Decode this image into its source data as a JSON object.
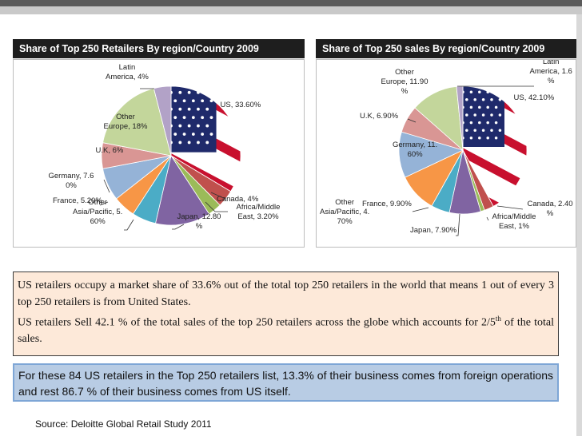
{
  "chart_data": [
    {
      "type": "pie",
      "title": "Share of Top 250 Retailers By region/Country 2009",
      "slices": [
        {
          "name": "US",
          "value": 33.6,
          "label_lines": [
            "US, 33.60%"
          ],
          "fill": "flag"
        },
        {
          "name": "Canada",
          "value": 4,
          "label_lines": [
            "Canada, 4%"
          ],
          "color": "#c0504d"
        },
        {
          "name": "Africa/Middle East",
          "value": 3.2,
          "label_lines": [
            "Africa/Middle",
            "East, 3.20%"
          ],
          "color": "#9bbb59"
        },
        {
          "name": "Japan",
          "value": 12.8,
          "label_lines": [
            "Japan, 12.80",
            "%"
          ],
          "color": "#8064a2"
        },
        {
          "name": "Other Asia/Pacific",
          "value": 5.6,
          "label_lines": [
            "Other",
            "Asia/Pacific, 5.",
            "60%"
          ],
          "color": "#4bacc6"
        },
        {
          "name": "France",
          "value": 5.2,
          "label_lines": [
            "France, 5.20%"
          ],
          "color": "#f79646"
        },
        {
          "name": "Germany",
          "value": 7.6,
          "label_lines": [
            "Germany, 7.6",
            "0%"
          ],
          "color": "#95b3d7"
        },
        {
          "name": "U.K",
          "value": 6,
          "label_lines": [
            "U.K, 6%"
          ],
          "color": "#d99694"
        },
        {
          "name": "Other Europe",
          "value": 18,
          "label_lines": [
            "Other",
            "Europe, 18%"
          ],
          "color": "#c3d69b"
        },
        {
          "name": "Latin America",
          "value": 4,
          "label_lines": [
            "Latin",
            "America, 4%"
          ],
          "color": "#b2a2c7"
        }
      ]
    },
    {
      "type": "pie",
      "title": "Share of Top 250 sales By region/Country 2009",
      "slices": [
        {
          "name": "US",
          "value": 42.1,
          "label_lines": [
            "US, 42.10%"
          ],
          "fill": "flag"
        },
        {
          "name": "Canada",
          "value": 2.4,
          "label_lines": [
            "Canada, 2.40",
            "%"
          ],
          "color": "#c0504d"
        },
        {
          "name": "Africa/Middle East",
          "value": 1,
          "label_lines": [
            "Africa/Middle",
            "East, 1%"
          ],
          "color": "#9bbb59"
        },
        {
          "name": "Japan",
          "value": 7.9,
          "label_lines": [
            "Japan, 7.90%"
          ],
          "color": "#8064a2"
        },
        {
          "name": "Other Asia/Pacific",
          "value": 4.7,
          "label_lines": [
            "Other",
            "Asia/Pacific, 4.",
            "70%"
          ],
          "color": "#4bacc6"
        },
        {
          "name": "France",
          "value": 9.9,
          "label_lines": [
            "France, 9.90%"
          ],
          "color": "#f79646"
        },
        {
          "name": "Germany",
          "value": 11.6,
          "label_lines": [
            "Germany, 11.",
            "60%"
          ],
          "color": "#95b3d7"
        },
        {
          "name": "U.K",
          "value": 6.9,
          "label_lines": [
            "U.K, 6.90%"
          ],
          "color": "#d99694"
        },
        {
          "name": "Other Europe",
          "value": 11.9,
          "label_lines": [
            "Other",
            "Europe, 11.90",
            "%"
          ],
          "color": "#c3d69b"
        },
        {
          "name": "Latin America",
          "value": 1.6,
          "label_lines": [
            "Latin",
            "America, 1.6",
            "%"
          ],
          "color": "#b2a2c7"
        }
      ]
    }
  ],
  "text_panel": {
    "paragraph1": "US retailers occupy a market share of 33.6% out of the total top 250 retailers in the world that means 1 out of every 3 top 250 retailers is from United States.",
    "paragraph2_start": "US retailers Sell 42.1 % of the total sales of the top 250 retailers across the globe which accounts for 2/5",
    "paragraph2_sup": "th",
    "paragraph2_end": " of the total sales."
  },
  "blue_panel": {
    "text": "For these 84 US retailers in the Top 250 retailers list, 13.3% of their business comes from foreign operations and rest 86.7 % of their business comes from US itself."
  },
  "source": "Source: Deloitte Global Retail Study 2011"
}
